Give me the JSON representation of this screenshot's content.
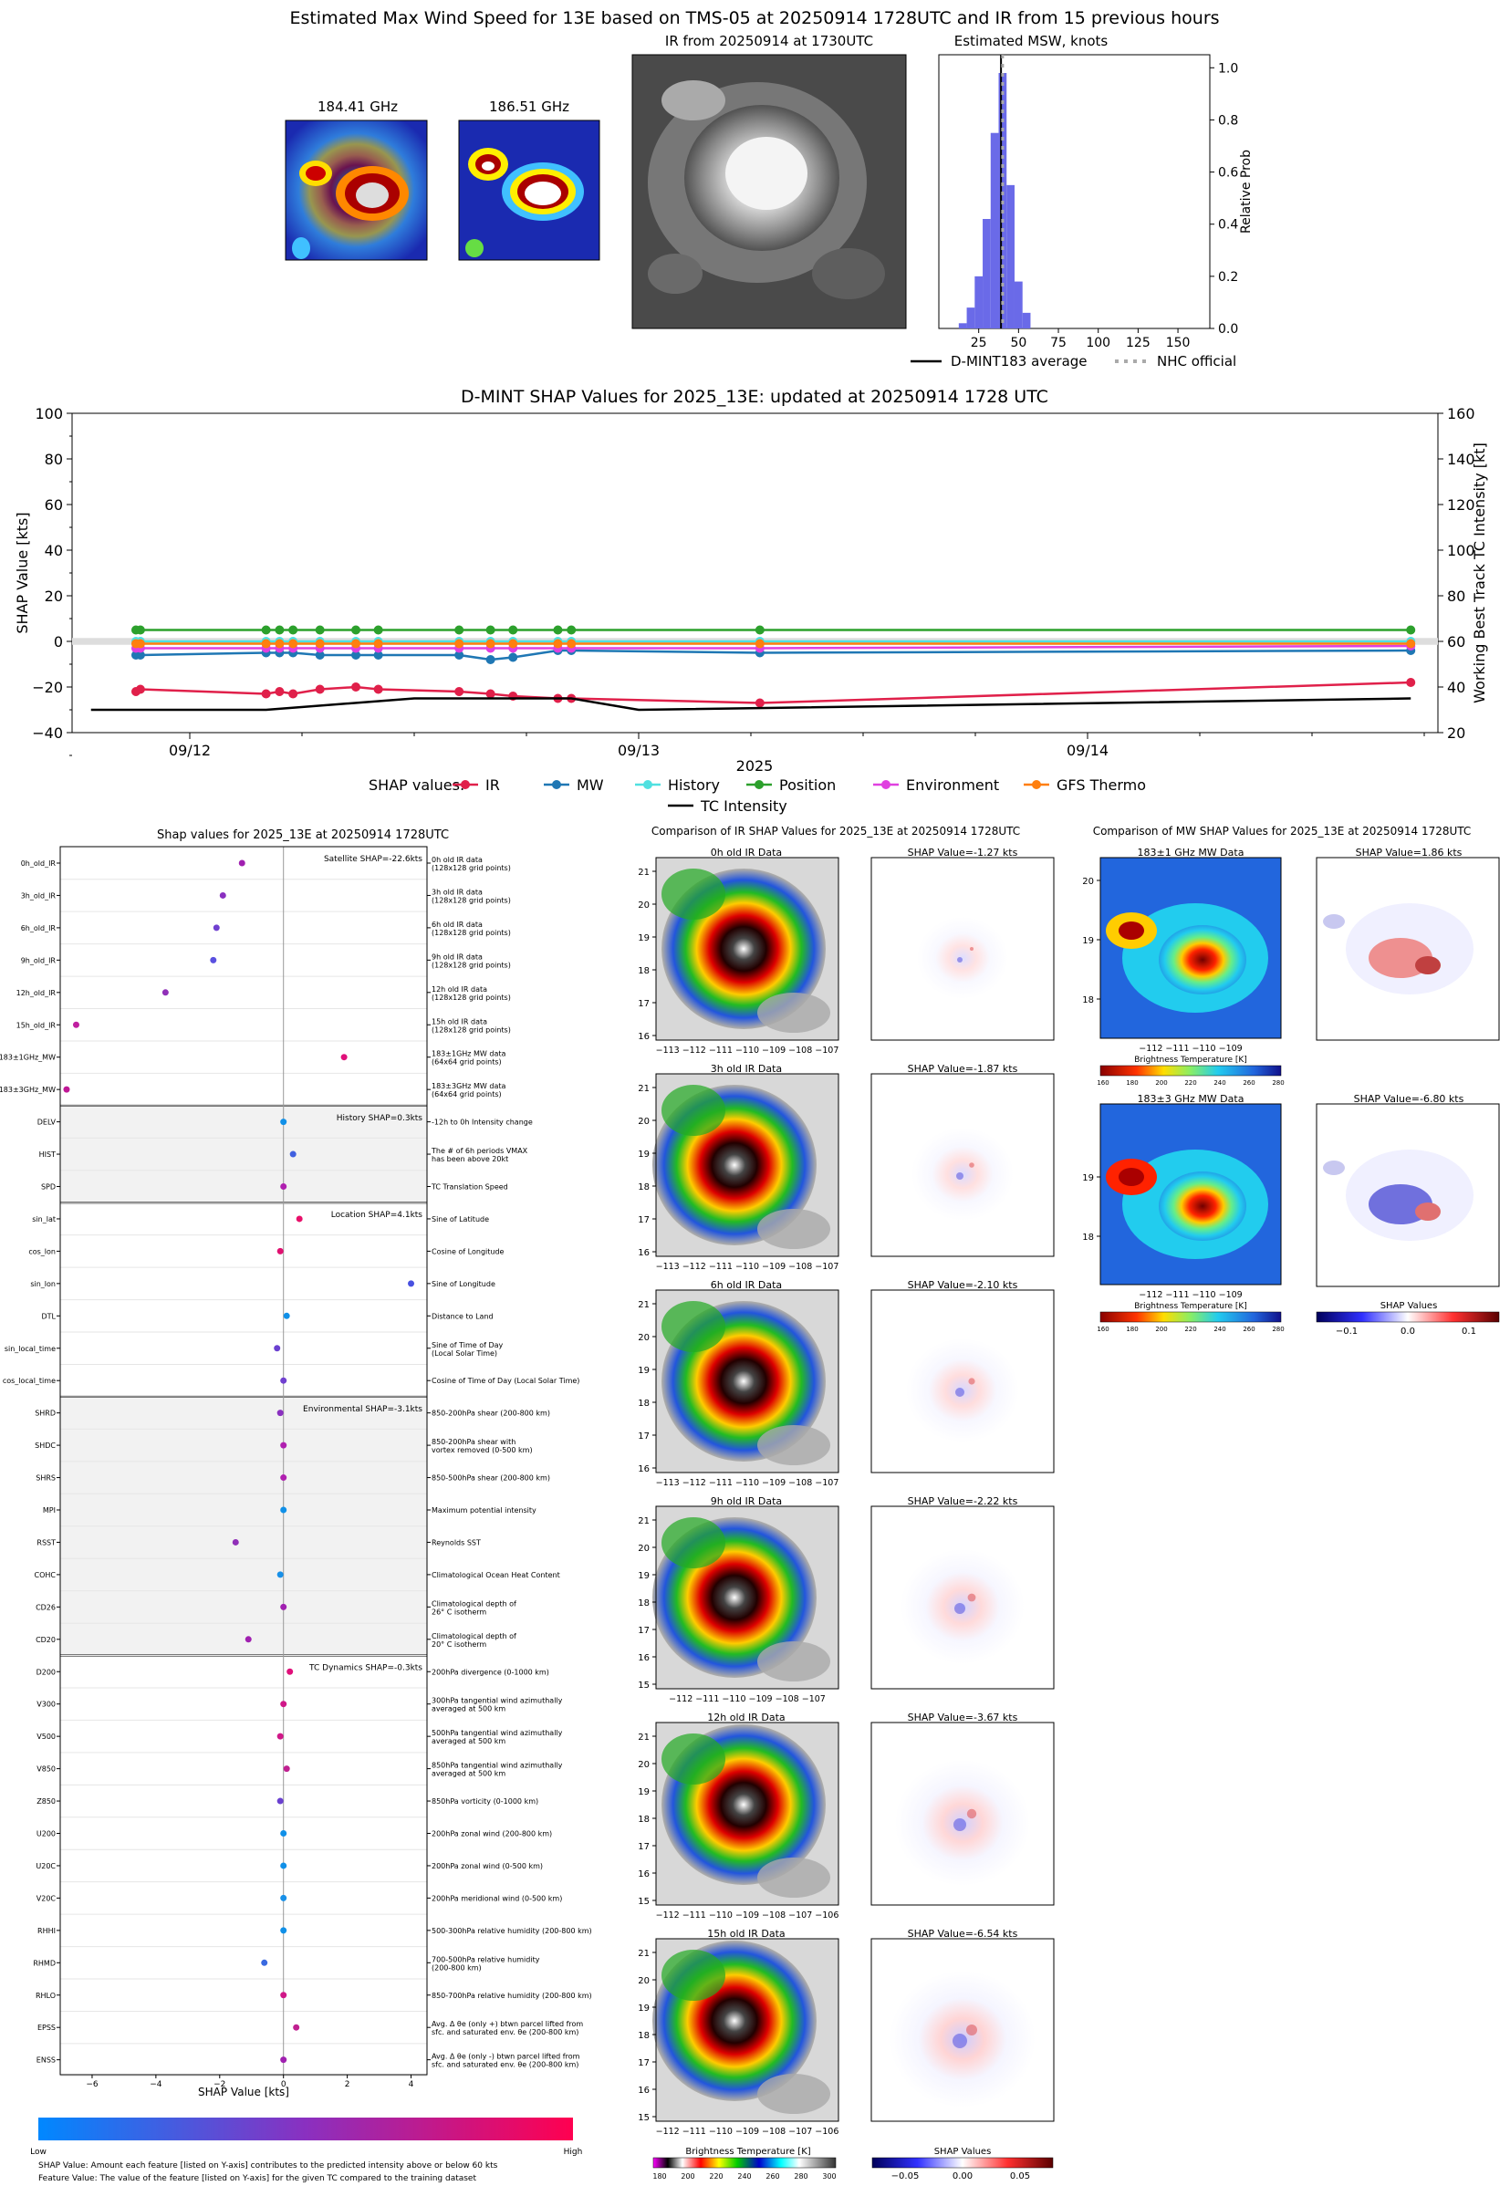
{
  "top": {
    "title": "Estimated Max Wind Speed for 13E based on TMS-05 at 20250914 1728UTC and IR from 15 previous hours",
    "panel1_title": "184.41 GHz",
    "panel2_title": "186.51 GHz",
    "ir_title": "IR from 20250914 at 1730UTC",
    "hist_title": "Estimated MSW, knots",
    "hist_ylabel": "Relative Prob",
    "hist_xticks": [
      "25",
      "50",
      "75",
      "100",
      "125",
      "150"
    ],
    "hist_yticks": [
      "0.0",
      "0.2",
      "0.4",
      "0.6",
      "0.8",
      "1.0"
    ],
    "legend_avg": "D-MINT183 average",
    "legend_nhc": "NHC official",
    "colors": {
      "hist": "#6a6ae8",
      "avg_line": "#000000",
      "nhc": "#aaaaaa"
    }
  },
  "shap_ts": {
    "title": "D-MINT SHAP Values for 2025_13E: updated at 20250914 1728 UTC",
    "ylabel_left": "SHAP Value [kts]",
    "ylabel_right": "Working Best Track TC Intensity [kt]",
    "yticks_left": [
      "100",
      "80",
      "60",
      "40",
      "20",
      "0",
      "−20",
      "−40"
    ],
    "yticks_right": [
      "160",
      "140",
      "120",
      "100",
      "80",
      "60",
      "40",
      "20"
    ],
    "xticks": [
      "09/12",
      "09/13",
      "09/14"
    ],
    "xlabel_year": "2025",
    "legend_title": "SHAP values:",
    "legend": [
      "IR",
      "MW",
      "History",
      "Position",
      "Environment",
      "GFS Thermo",
      "TC Intensity"
    ]
  },
  "chart_data": [
    {
      "type": "bar",
      "title": "Estimated MSW, knots",
      "xlabel": "",
      "ylabel": "Relative Prob",
      "categories": [
        15,
        20,
        25,
        30,
        35,
        40,
        45,
        50,
        55
      ],
      "values": [
        0.02,
        0.08,
        0.2,
        0.42,
        0.75,
        0.98,
        0.55,
        0.18,
        0.06
      ],
      "xlim": [
        0,
        170
      ],
      "ylim": [
        0,
        1.05
      ],
      "markers": {
        "d_mint183_average": 39,
        "nhc_official": 40
      }
    },
    {
      "type": "line",
      "title": "D-MINT SHAP Values for 2025_13E: updated at 20250914 1728 UTC",
      "ylim": [
        -40,
        100
      ],
      "ylim_right": [
        20,
        160
      ],
      "x_day_ticks": {
        "09/12": 0,
        "09/13": 1,
        "09/14": 2
      },
      "series": [
        {
          "name": "IR",
          "color": "#e0204a",
          "x": [
            -0.12,
            -0.11,
            0.17,
            0.2,
            0.23,
            0.29,
            0.37,
            0.42,
            0.6,
            0.67,
            0.72,
            0.82,
            0.85,
            1.27,
            2.72
          ],
          "y": [
            -22,
            -21,
            -23,
            -22,
            -23,
            -21,
            -20,
            -21,
            -22,
            -23,
            -24,
            -25,
            -25,
            -27,
            -18
          ]
        },
        {
          "name": "MW",
          "color": "#1f77b4",
          "x": [
            -0.12,
            -0.11,
            0.17,
            0.2,
            0.23,
            0.29,
            0.37,
            0.42,
            0.6,
            0.67,
            0.72,
            0.82,
            0.85,
            1.27,
            2.72
          ],
          "y": [
            -6,
            -6,
            -5,
            -5,
            -5,
            -6,
            -6,
            -6,
            -6,
            -8,
            -7,
            -4,
            -4,
            -5,
            -4
          ]
        },
        {
          "name": "History",
          "color": "#50e0e0",
          "x": [
            -0.12,
            -0.11,
            0.17,
            0.2,
            0.23,
            0.29,
            0.37,
            0.42,
            0.6,
            0.67,
            0.72,
            0.82,
            0.85,
            1.27,
            2.72
          ],
          "y": [
            0,
            0,
            0,
            0,
            0,
            0,
            0,
            0,
            0,
            0,
            0,
            0,
            0,
            0,
            0
          ]
        },
        {
          "name": "Position",
          "color": "#2ca02c",
          "x": [
            -0.12,
            -0.11,
            0.17,
            0.2,
            0.23,
            0.29,
            0.37,
            0.42,
            0.6,
            0.67,
            0.72,
            0.82,
            0.85,
            1.27,
            2.72
          ],
          "y": [
            5,
            5,
            5,
            5,
            5,
            5,
            5,
            5,
            5,
            5,
            5,
            5,
            5,
            5,
            5
          ]
        },
        {
          "name": "Environment",
          "color": "#e040e0",
          "x": [
            -0.12,
            -0.11,
            0.17,
            0.2,
            0.23,
            0.29,
            0.37,
            0.42,
            0.6,
            0.67,
            0.72,
            0.82,
            0.85,
            1.27,
            2.72
          ],
          "y": [
            -3,
            -3,
            -3,
            -3,
            -3,
            -3,
            -3,
            -3,
            -3,
            -3,
            -3,
            -3,
            -3,
            -3,
            -2
          ]
        },
        {
          "name": "GFS Thermo",
          "color": "#ff7f0e",
          "x": [
            -0.12,
            -0.11,
            0.17,
            0.2,
            0.23,
            0.29,
            0.37,
            0.42,
            0.6,
            0.67,
            0.72,
            0.82,
            0.85,
            1.27,
            2.72
          ],
          "y": [
            -1,
            -1,
            -1,
            -1,
            -1,
            -1,
            -1,
            -1,
            -1,
            -1,
            -1,
            -1,
            -1,
            -1,
            -1
          ]
        },
        {
          "name": "TC Intensity",
          "color": "#000000",
          "axis": "right",
          "x": [
            -0.22,
            0.17,
            0.5,
            0.85,
            1.0,
            2.72
          ],
          "y": [
            30,
            30,
            35,
            35,
            30,
            35
          ]
        }
      ]
    },
    {
      "type": "scatter",
      "title": "Shap values for 2025_13E at 20250914 1728UTC",
      "xlabel": "SHAP Value [kts]",
      "xlim": [
        -7,
        4.5
      ],
      "xticks": [
        "−6",
        "−4",
        "−2",
        "0",
        "2",
        "4"
      ],
      "features": [
        {
          "name": "0h_old_IR",
          "desc": "0h old IR data\n(128x128 grid points)",
          "shap": -1.3,
          "color": "#a020b0"
        },
        {
          "name": "3h_old_IR",
          "desc": "3h old IR data\n(128x128 grid points)",
          "shap": -1.9,
          "color": "#8a30c0"
        },
        {
          "name": "6h_old_IR",
          "desc": "6h old IR data\n(128x128 grid points)",
          "shap": -2.1,
          "color": "#7040d0"
        },
        {
          "name": "9h_old_IR",
          "desc": "9h old IR data\n(128x128 grid points)",
          "shap": -2.2,
          "color": "#5a50e0"
        },
        {
          "name": "12h_old_IR",
          "desc": "12h old IR data\n(128x128 grid points)",
          "shap": -3.7,
          "color": "#9030b8"
        },
        {
          "name": "15h_old_IR",
          "desc": "15h old IR data\n(128x128 grid points)",
          "shap": -6.5,
          "color": "#c020a0"
        },
        {
          "name": "183±1GHz_MW",
          "desc": "183±1GHz MW data\n(64x64 grid points)",
          "shap": 1.9,
          "color": "#e0107a"
        },
        {
          "name": "183±3GHz_MW",
          "desc": "183±3GHz MW data\n(64x64 grid points)",
          "shap": -6.8,
          "color": "#c01896"
        },
        {
          "name": "DELV",
          "desc": "-12h to 0h Intensity change",
          "shap": 0.0,
          "color": "#1090e8"
        },
        {
          "name": "HIST",
          "desc": "The # of 6h periods VMAX\nhas been above 20kt",
          "shap": 0.3,
          "color": "#4060e0"
        },
        {
          "name": "SPD",
          "desc": "TC Translation Speed",
          "shap": 0.0,
          "color": "#b020b0"
        },
        {
          "name": "sin_lat",
          "desc": "Sine of Latitude",
          "shap": 0.5,
          "color": "#e8106a"
        },
        {
          "name": "cos_lon",
          "desc": "Cosine of Longitude",
          "shap": -0.1,
          "color": "#e01070"
        },
        {
          "name": "sin_lon",
          "desc": "Sine of Longitude",
          "shap": 4.0,
          "color": "#4850e0"
        },
        {
          "name": "DTL",
          "desc": "Distance to Land",
          "shap": 0.1,
          "color": "#1090e8"
        },
        {
          "name": "sin_local_time",
          "desc": "Sine of Time of Day\n(Local Solar Time)",
          "shap": -0.2,
          "color": "#6a40d0"
        },
        {
          "name": "cos_local_time",
          "desc": "Cosine of Time of Day (Local Solar Time)",
          "shap": 0.0,
          "color": "#7040d0"
        },
        {
          "name": "SHRD",
          "desc": "850-200hPa shear (200-800 km)",
          "shap": -0.1,
          "color": "#8a30c0"
        },
        {
          "name": "SHDC",
          "desc": "850-200hPa shear with\nvortex removed (0-500 km)",
          "shap": 0.0,
          "color": "#b020b0"
        },
        {
          "name": "SHRS",
          "desc": "850-500hPa shear (200-800 km)",
          "shap": 0.0,
          "color": "#b020b0"
        },
        {
          "name": "MPI",
          "desc": "Maximum potential intensity",
          "shap": 0.0,
          "color": "#1090e8"
        },
        {
          "name": "RSST",
          "desc": "Reynolds SST",
          "shap": -1.5,
          "color": "#9030b8"
        },
        {
          "name": "COHC",
          "desc": "Climatological Ocean Heat Content",
          "shap": -0.1,
          "color": "#1890e8"
        },
        {
          "name": "CD26",
          "desc": "Climatological depth of\n26° C isotherm",
          "shap": 0.0,
          "color": "#a020b0"
        },
        {
          "name": "CD20",
          "desc": "Climatological depth of\n20° C isotherm",
          "shap": -1.1,
          "color": "#a020b0"
        },
        {
          "name": "D200",
          "desc": "200hPa divergence (0-1000 km)",
          "shap": 0.2,
          "color": "#e0107a"
        },
        {
          "name": "V300",
          "desc": "300hPa tangential wind azimuthally\naveraged at 500 km",
          "shap": 0.0,
          "color": "#d01888"
        },
        {
          "name": "V500",
          "desc": "500hPa tangential wind azimuthally\naveraged at 500 km",
          "shap": -0.1,
          "color": "#d01888"
        },
        {
          "name": "V850",
          "desc": "850hPa tangential wind azimuthally\naveraged at 500 km",
          "shap": 0.1,
          "color": "#c02090"
        },
        {
          "name": "Z850",
          "desc": "850hPa vorticity (0-1000 km)",
          "shap": -0.1,
          "color": "#6a40d0"
        },
        {
          "name": "U200",
          "desc": "200hPa zonal wind (200-800 km)",
          "shap": 0.0,
          "color": "#1090e8"
        },
        {
          "name": "U20C",
          "desc": "200hPa zonal wind (0-500 km)",
          "shap": 0.0,
          "color": "#1090e8"
        },
        {
          "name": "V20C",
          "desc": "200hPa meridional wind (0-500 km)",
          "shap": 0.0,
          "color": "#1890e8"
        },
        {
          "name": "RHHI",
          "desc": "500-300hPa relative humidity (200-800 km)",
          "shap": 0.0,
          "color": "#1090e8"
        },
        {
          "name": "RHMD",
          "desc": "700-500hPa relative humidity\n(200-800 km)",
          "shap": -0.6,
          "color": "#3a6ae0"
        },
        {
          "name": "RHLO",
          "desc": "850-700hPa relative humidity (200-800 km)",
          "shap": 0.0,
          "color": "#d01888"
        },
        {
          "name": "EPSS",
          "desc": "Avg. Δ θe (only +) btwn parcel lifted from\nsfc. and saturated env. θe (200-800 km)",
          "shap": 0.4,
          "color": "#c02090"
        },
        {
          "name": "ENSS",
          "desc": "Avg. Δ θe (only -) btwn parcel lifted from\nsfc. and saturated env. θe (200-800 km)",
          "shap": 0.0,
          "color": "#a020b0"
        }
      ],
      "groups": [
        {
          "label": "Satellite SHAP=-22.6kts",
          "start": 0,
          "end": 7,
          "shaded": false
        },
        {
          "label": "History SHAP=0.3kts",
          "start": 8,
          "end": 10,
          "shaded": true
        },
        {
          "label": "Location SHAP=4.1kts",
          "start": 11,
          "end": 16,
          "shaded": false
        },
        {
          "label": "Environmental SHAP=-3.1kts",
          "start": 17,
          "end": 24,
          "shaded": true
        },
        {
          "label": "TC Dynamics SHAP=-0.3kts",
          "start": 25,
          "end": 37,
          "shaded": false
        }
      ]
    }
  ],
  "bar": {
    "title": "Shap values for 2025_13E at 20250914 1728UTC",
    "low": "Low",
    "high": "High",
    "note1": "SHAP Value: Amount each feature [listed on Y-axis] contributes to the predicted intensity above or below 60 kts",
    "note2": "Feature Value: The value of the feature [listed on Y-axis] for the given TC compared to the training dataset"
  },
  "ir": {
    "title": "Comparison of IR SHAP Values for 2025_13E at 20250914 1728UTC",
    "rows": [
      {
        "data_title": "0h old IR Data",
        "shap_title": "SHAP Value=-1.27 kts",
        "xticks": "−113 −112 −111 −110 −109 −108 −107",
        "yticks": [
          "21",
          "20",
          "19",
          "18",
          "17",
          "16"
        ]
      },
      {
        "data_title": "3h old IR Data",
        "shap_title": "SHAP Value=-1.87 kts",
        "xticks": "−113 −112 −111 −110 −109 −108 −107",
        "yticks": [
          "21",
          "20",
          "19",
          "18",
          "17",
          "16"
        ]
      },
      {
        "data_title": "6h old IR Data",
        "shap_title": "SHAP Value=-2.10 kts",
        "xticks": "−113 −112 −111 −110 −109 −108 −107",
        "yticks": [
          "21",
          "20",
          "19",
          "18",
          "17",
          "16"
        ]
      },
      {
        "data_title": "9h old IR Data",
        "shap_title": "SHAP Value=-2.22 kts",
        "xticks": "−112 −111 −110 −109 −108 −107",
        "yticks": [
          "21",
          "20",
          "19",
          "18",
          "17",
          "16",
          "15"
        ]
      },
      {
        "data_title": "12h old IR Data",
        "shap_title": "SHAP Value=-3.67 kts",
        "xticks": "−112 −111 −110 −109 −108 −107 −106",
        "yticks": [
          "21",
          "20",
          "19",
          "18",
          "17",
          "16",
          "15"
        ]
      },
      {
        "data_title": "15h old IR Data",
        "shap_title": "SHAP Value=-6.54 kts",
        "xticks": "−112 −111 −110 −109 −108 −107 −106",
        "yticks": [
          "21",
          "20",
          "19",
          "18",
          "17",
          "16",
          "15"
        ]
      }
    ],
    "cbar_label": "Brightness Temperature [K]",
    "cbar_ticks": [
      "180",
      "200",
      "220",
      "240",
      "260",
      "280",
      "300"
    ],
    "shap_cbar_label": "SHAP Values",
    "shap_cbar_ticks": [
      "−0.05",
      "0.00",
      "0.05"
    ]
  },
  "mw": {
    "title": "Comparison of MW SHAP Values for 2025_13E at 20250914 1728UTC",
    "rows": [
      {
        "data_title": "183±1 GHz MW Data",
        "shap_title": "SHAP Value=1.86 kts",
        "xticks": "−112        −111        −110        −109",
        "yticks": [
          "20",
          "19",
          "18"
        ]
      },
      {
        "data_title": "183±3 GHz MW Data",
        "shap_title": "SHAP Value=-6.80 kts",
        "xticks": "−112        −111        −110        −109",
        "yticks": [
          "19",
          "18"
        ]
      }
    ],
    "cbar_label": "Brightness Temperature [K]",
    "cbar_ticks": [
      "160",
      "180",
      "200",
      "220",
      "240",
      "260",
      "280"
    ],
    "shap_cbar_label": "SHAP Values",
    "shap_cbar_ticks": [
      "−0.1",
      "0.0",
      "0.1"
    ]
  }
}
